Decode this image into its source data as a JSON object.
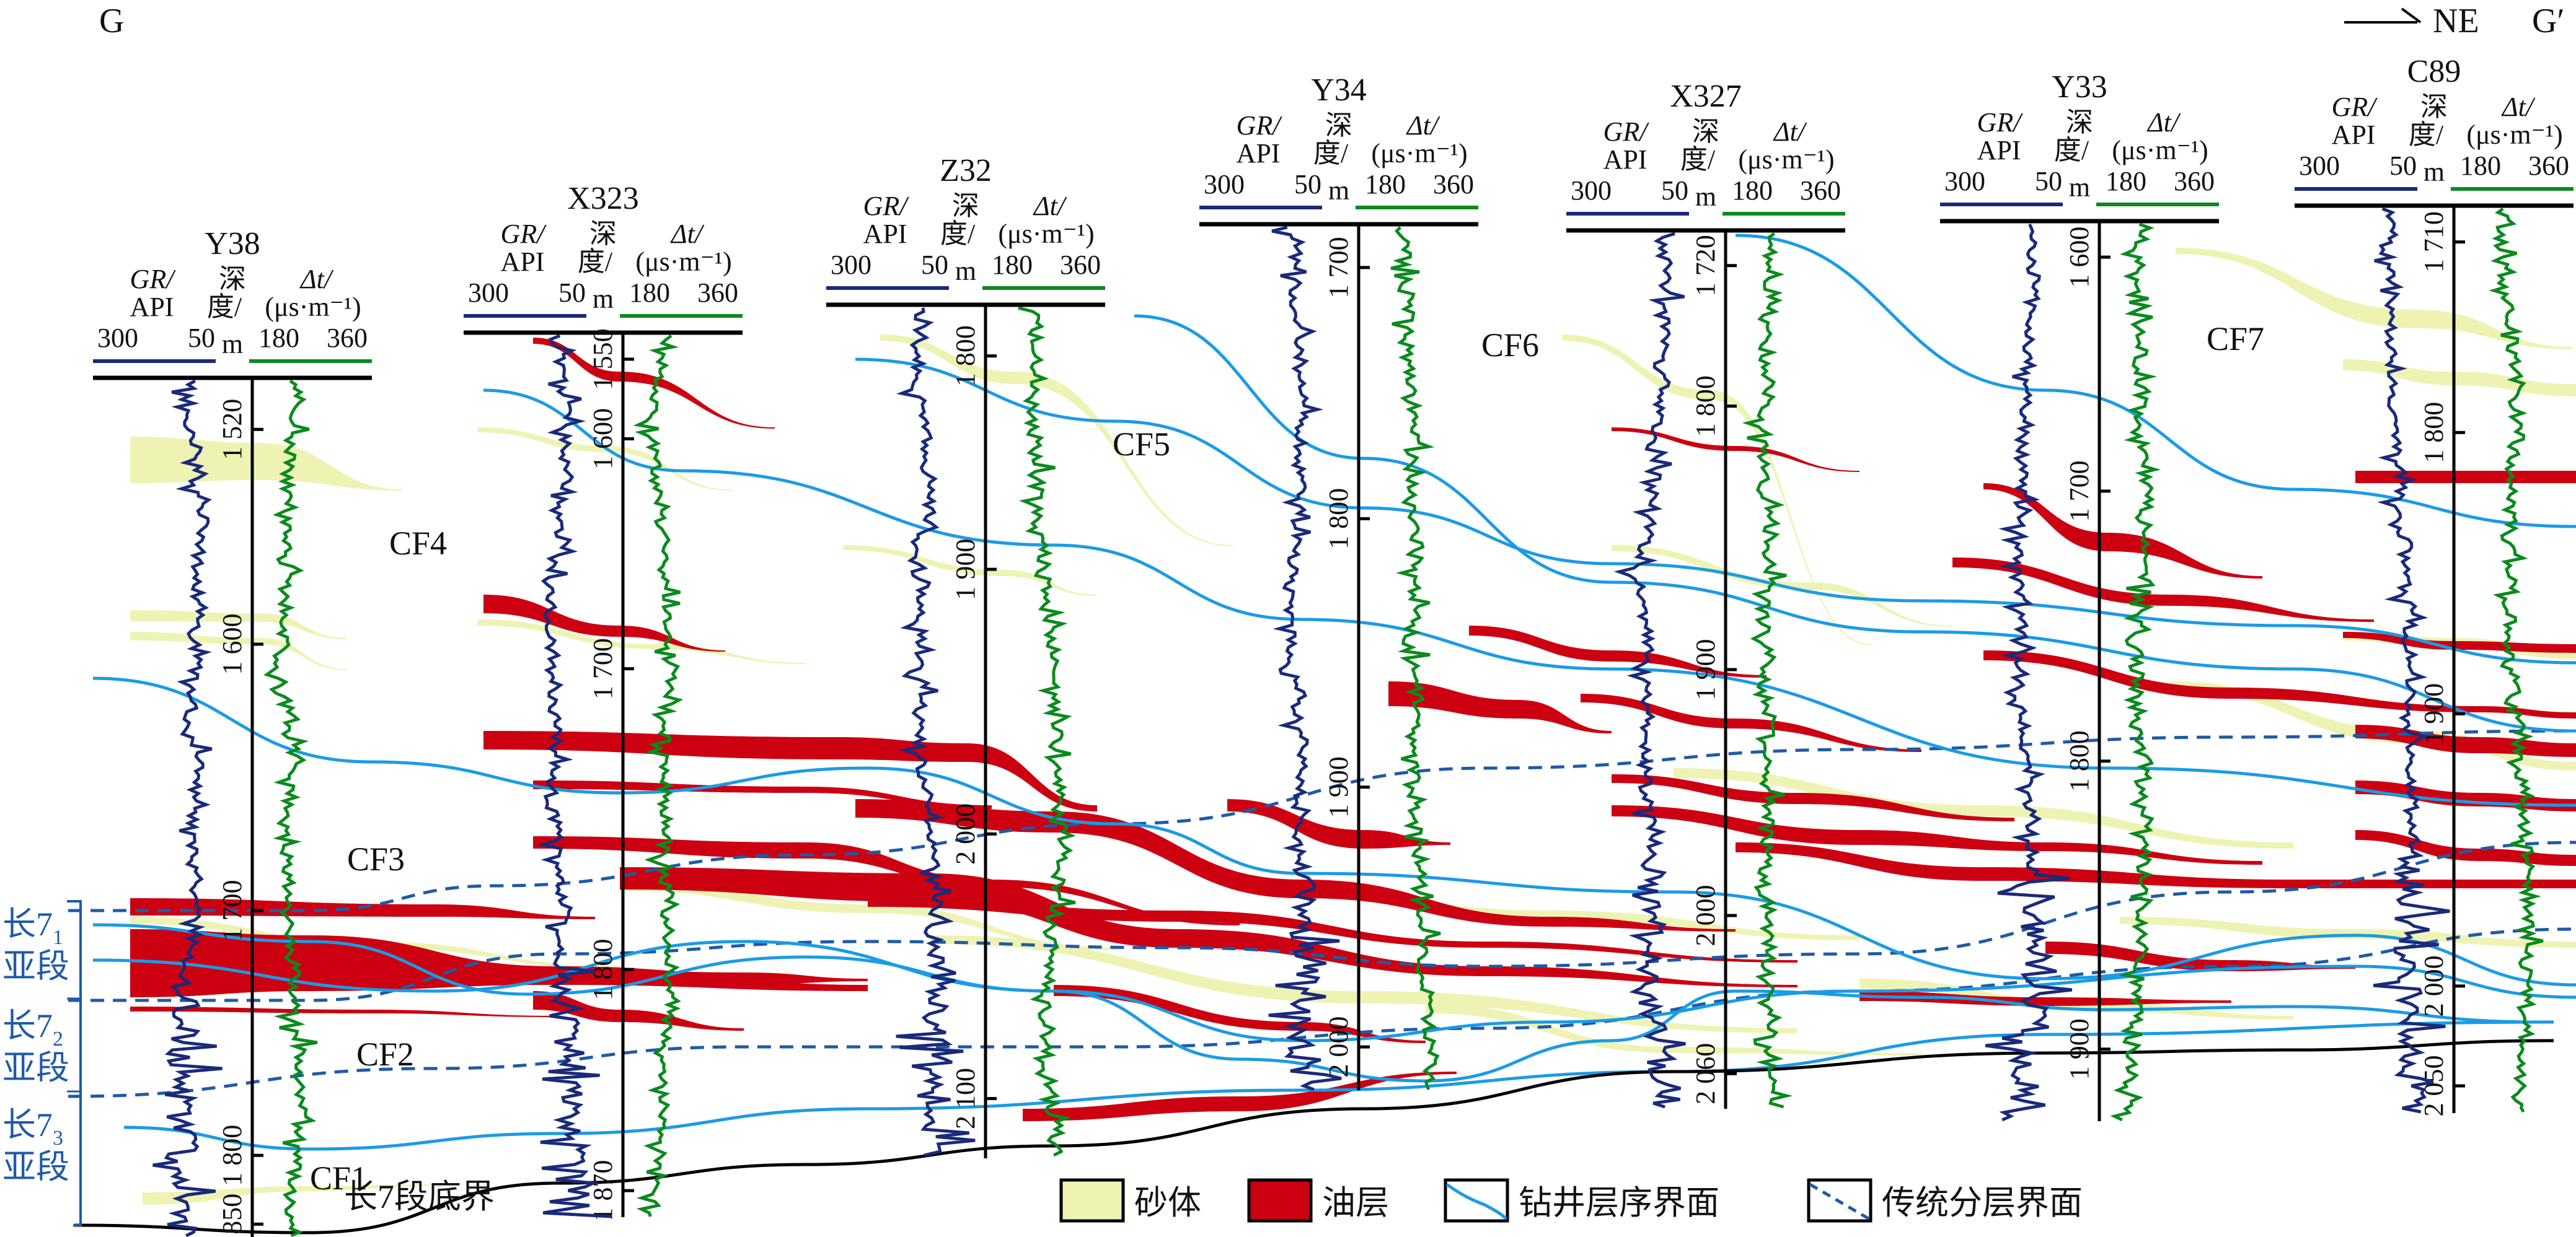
{
  "title_left": "G",
  "title_right": "G′",
  "direction_label": "NE",
  "colors": {
    "sand": "#eef3b3",
    "oil": "#cc0011",
    "gr_curve": "#1a2a7a",
    "dt_curve": "#0b8a1e",
    "seq_boundary": "#1a9be6",
    "traditional_boundary": "#1f5aa6",
    "axis": "#000000",
    "substage_text": "#1f5aa6"
  },
  "header_labels": {
    "gr_name": "GR/",
    "gr_unit": "API",
    "depth_name": "深",
    "depth_unit": "度/",
    "depth_m": "m",
    "dt_name": "Δt/",
    "dt_unit": "(μs·m⁻¹)",
    "gr_min": "300",
    "gr_max": "50",
    "dt_min": "180",
    "dt_max": "360"
  },
  "wells": [
    {
      "name": "Y38",
      "depth_ticks": [
        "1 520",
        "1 600",
        "1 700",
        "1 800",
        "1 850"
      ]
    },
    {
      "name": "X323",
      "depth_ticks": [
        "1 550",
        "1 600",
        "1 700",
        "1 800",
        "1 870"
      ]
    },
    {
      "name": "Z32",
      "depth_ticks": [
        "1 800",
        "1 900",
        "2 000",
        "2 100"
      ]
    },
    {
      "name": "Y34",
      "depth_ticks": [
        "1 700",
        "1 800",
        "1 900",
        "2 000"
      ]
    },
    {
      "name": "X327",
      "depth_ticks": [
        "1 720",
        "1 800",
        "1 900",
        "2 000",
        "2 060"
      ]
    },
    {
      "name": "Y33",
      "depth_ticks": [
        "1 600",
        "1 700",
        "1 800",
        "1 900"
      ]
    },
    {
      "name": "C89",
      "depth_ticks": [
        "1 710",
        "1 800",
        "1 900",
        "2 000",
        "2 050"
      ]
    }
  ],
  "cycle_labels": [
    "CF1",
    "CF2",
    "CF3",
    "CF4",
    "CF5",
    "CF6",
    "CF7"
  ],
  "substages": [
    {
      "main": "长7",
      "index": "1",
      "suffix": "亚段"
    },
    {
      "main": "长7",
      "index": "2",
      "suffix": "亚段"
    },
    {
      "main": "长7",
      "index": "3",
      "suffix": "亚段"
    }
  ],
  "base_label": "长7段底界",
  "legend": [
    {
      "key": "sand",
      "label": "砂体"
    },
    {
      "key": "oil",
      "label": "油层"
    },
    {
      "key": "seq",
      "label": "钻井层序界面"
    },
    {
      "key": "trad",
      "label": "传统分层界面"
    }
  ]
}
